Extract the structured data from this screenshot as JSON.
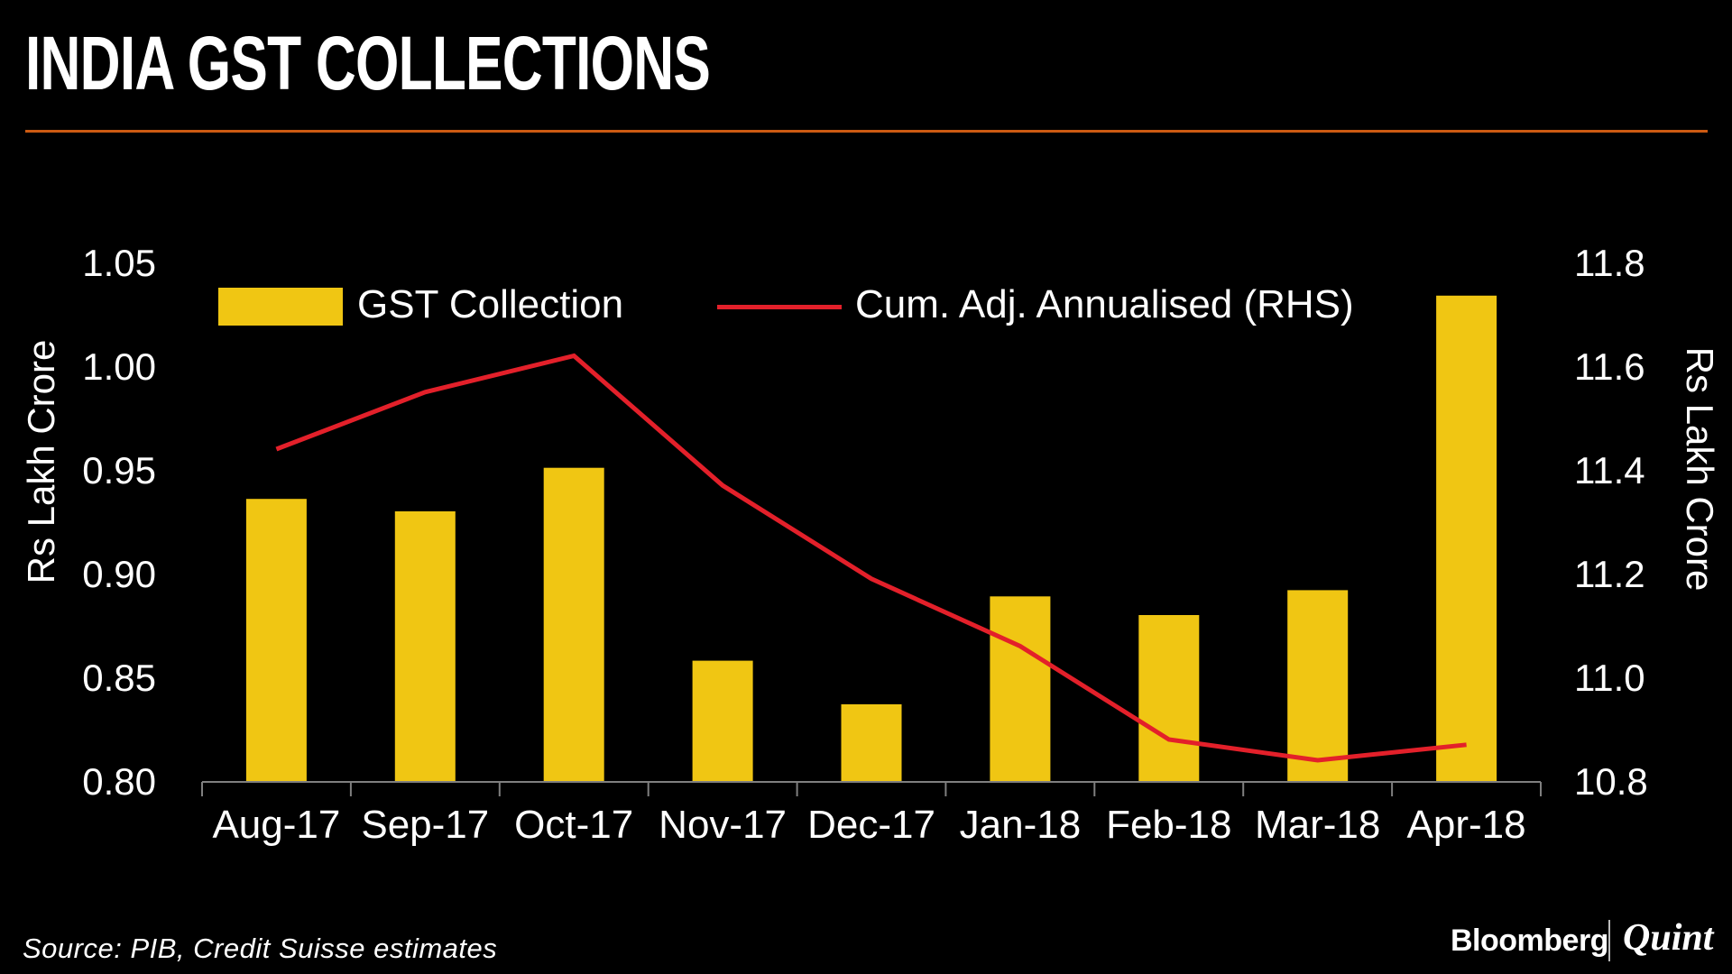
{
  "title": "INDIA GST COLLECTIONS",
  "legend": [
    {
      "label": "GST Collection",
      "type": "bar"
    },
    {
      "label": "Cum. Adj. Annualised (RHS)",
      "type": "line"
    }
  ],
  "left_axis": {
    "title": "Rs Lakh Crore",
    "ticks": [
      "1.05",
      "1.00",
      "0.95",
      "0.90",
      "0.85",
      "0.80"
    ]
  },
  "right_axis": {
    "title": "Rs Lakh Crore",
    "ticks": [
      "11.8",
      "11.6",
      "11.4",
      "11.2",
      "11.0",
      "10.8"
    ]
  },
  "footer": {
    "source": "Source: PIB, Credit Suisse estimates",
    "brand": {
      "bloomberg": "Bloomberg",
      "quint": "Quint"
    }
  },
  "colors": {
    "background": "#000000",
    "bar": "#F0C613",
    "line": "#E3202A",
    "rule": "#CC5A12",
    "axis": "#7F7F7F",
    "text": "#FFFFFF"
  },
  "chart_data": {
    "type": "bar",
    "title": "INDIA GST COLLECTIONS",
    "xlabel": "",
    "categories": [
      "Aug-17",
      "Sep-17",
      "Oct-17",
      "Nov-17",
      "Dec-17",
      "Jan-18",
      "Feb-18",
      "Mar-18",
      "Apr-18"
    ],
    "series": [
      {
        "name": "GST Collection",
        "type": "bar",
        "axis": "left",
        "values": [
          0.936,
          0.93,
          0.951,
          0.858,
          0.837,
          0.889,
          0.88,
          0.892,
          1.034
        ]
      },
      {
        "name": "Cum. Adj. Annualised (RHS)",
        "type": "line",
        "axis": "right",
        "values": [
          11.44,
          11.55,
          11.62,
          11.37,
          11.19,
          11.06,
          10.88,
          10.84,
          10.87
        ]
      }
    ],
    "left_ylabel": "Rs Lakh Crore",
    "right_ylabel": "Rs Lakh Crore",
    "left_ylim": [
      0.8,
      1.05
    ],
    "right_ylim": [
      10.8,
      11.8
    ],
    "grid": false,
    "legend_position": "top"
  }
}
